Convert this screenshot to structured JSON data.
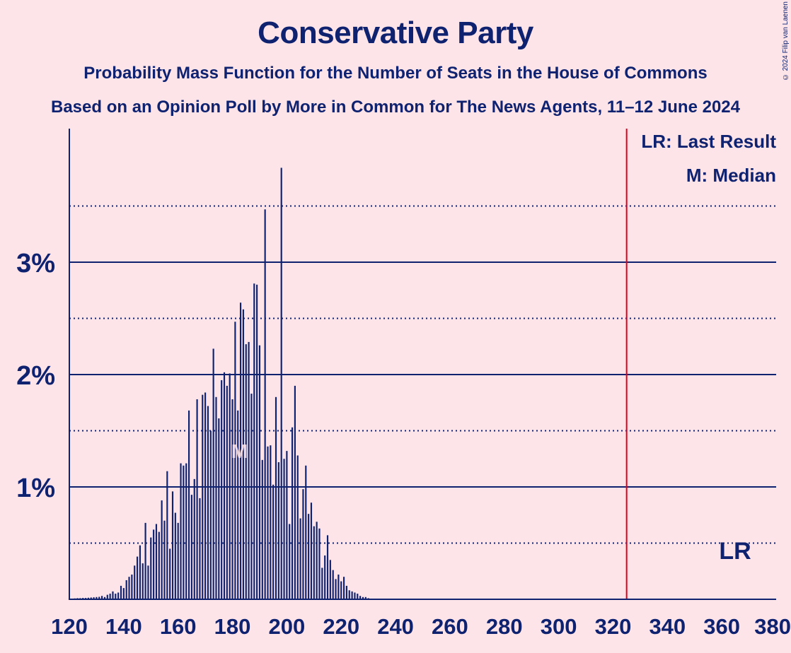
{
  "chart_data": {
    "type": "bar",
    "title": "Conservative Party",
    "subtitle": "Probability Mass Function for the Number of Seats in the House of Commons",
    "subtitle2": "Based on an Opinion Poll by More in Common for The News Agents, 11–12 June 2024",
    "copyright": "© 2024 Filip van Laenen",
    "x_range": [
      120,
      380
    ],
    "y_range": [
      0,
      4.2
    ],
    "y_unit": "%",
    "x_ticks": [
      "120",
      "140",
      "160",
      "180",
      "200",
      "220",
      "240",
      "260",
      "280",
      "300",
      "320",
      "340",
      "360",
      "380"
    ],
    "y_ticks": [
      {
        "value": 1,
        "label": "1%"
      },
      {
        "value": 2,
        "label": "2%"
      },
      {
        "value": 3,
        "label": "3%"
      }
    ],
    "grid_dotted": [
      0.5,
      1.5,
      2.5,
      3.5
    ],
    "last_result": 325,
    "median": 180,
    "legend": {
      "lr": "LR: Last Result",
      "m": "M: Median",
      "lr_marker": "LR",
      "m_marker": "M"
    },
    "x": [
      120,
      121,
      122,
      123,
      124,
      125,
      126,
      127,
      128,
      129,
      130,
      131,
      132,
      133,
      134,
      135,
      136,
      137,
      138,
      139,
      140,
      141,
      142,
      143,
      144,
      145,
      146,
      147,
      148,
      149,
      150,
      151,
      152,
      153,
      154,
      155,
      156,
      157,
      158,
      159,
      160,
      161,
      162,
      163,
      164,
      165,
      166,
      167,
      168,
      169,
      170,
      171,
      172,
      173,
      174,
      175,
      176,
      177,
      178,
      179,
      180,
      181,
      182,
      183,
      184,
      185,
      186,
      187,
      188,
      189,
      190,
      191,
      192,
      193,
      194,
      195,
      196,
      197,
      198,
      199,
      200,
      201,
      202,
      203,
      204,
      205,
      206,
      207,
      208,
      209,
      210,
      211,
      212,
      213,
      214,
      215,
      216,
      217,
      218,
      219,
      220,
      221,
      222,
      223,
      224,
      225,
      226,
      227,
      228,
      229,
      230
    ],
    "values": [
      0.005,
      0.006,
      0.008,
      0.01,
      0.01,
      0.012,
      0.012,
      0.014,
      0.016,
      0.018,
      0.02,
      0.022,
      0.03,
      0.02,
      0.04,
      0.05,
      0.07,
      0.05,
      0.06,
      0.12,
      0.1,
      0.17,
      0.2,
      0.22,
      0.3,
      0.38,
      0.48,
      0.32,
      0.68,
      0.3,
      0.55,
      0.62,
      0.67,
      0.6,
      0.88,
      0.7,
      1.14,
      0.45,
      0.96,
      0.77,
      0.68,
      1.21,
      1.19,
      1.21,
      1.68,
      0.93,
      1.07,
      1.78,
      0.9,
      1.82,
      1.84,
      1.72,
      1.5,
      2.23,
      1.8,
      1.61,
      1.95,
      2.02,
      1.9,
      2.01,
      1.78,
      2.47,
      1.68,
      2.64,
      2.58,
      2.27,
      2.29,
      1.83,
      2.81,
      2.8,
      2.26,
      1.24,
      3.47,
      1.36,
      1.37,
      1.02,
      1.8,
      1.22,
      3.84,
      1.25,
      1.32,
      0.67,
      1.53,
      1.9,
      1.28,
      0.72,
      0.98,
      1.19,
      0.76,
      0.86,
      0.65,
      0.69,
      0.63,
      0.28,
      0.39,
      0.57,
      0.35,
      0.26,
      0.18,
      0.22,
      0.16,
      0.2,
      0.12,
      0.08,
      0.07,
      0.06,
      0.05,
      0.03,
      0.02,
      0.02,
      0.01
    ]
  }
}
